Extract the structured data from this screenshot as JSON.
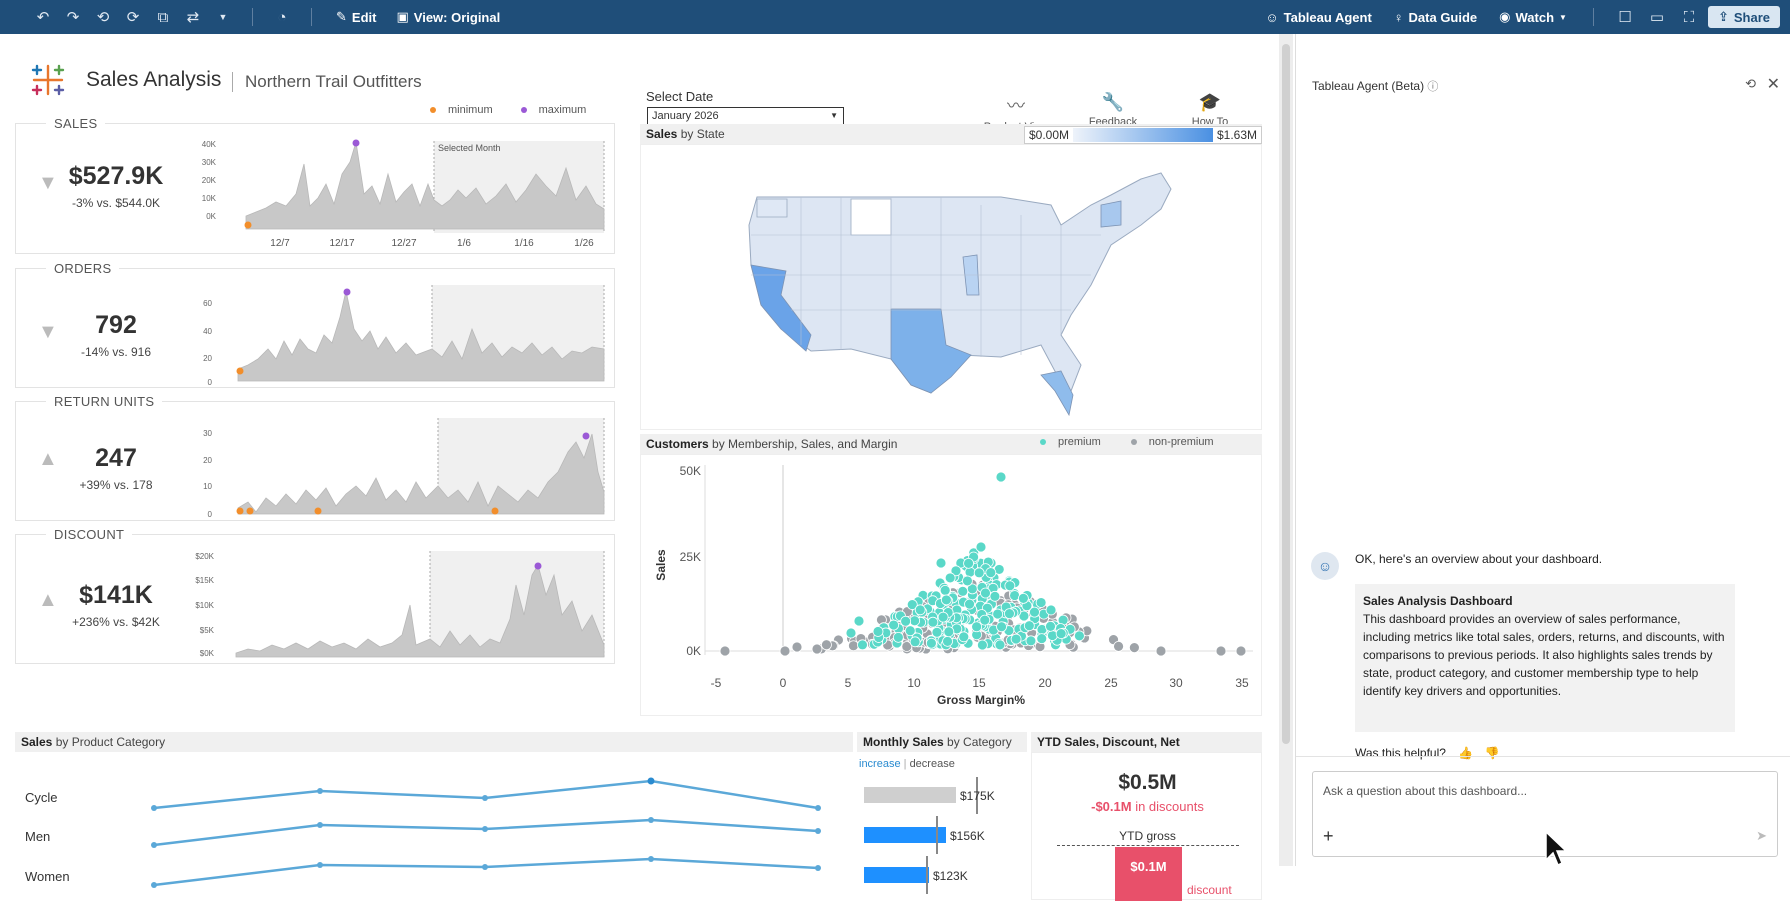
{
  "toolbar": {
    "edit_label": "Edit",
    "view_label": "View: Original",
    "agent_label": "Tableau Agent",
    "guide_label": "Data Guide",
    "watch_label": "Watch",
    "share_label": "Share"
  },
  "header": {
    "title": "Sales Analysis",
    "subtitle": "Northern Trail Outfitters",
    "legend_min": "minimum",
    "legend_max": "maximum"
  },
  "kpis": [
    {
      "label": "SALES",
      "value": "$527.9K",
      "pct": "-3%",
      "vs": " vs. $544.0K",
      "trend": "down",
      "yticks": [
        "40K",
        "30K",
        "20K",
        "10K",
        "0K"
      ],
      "xticks": [
        "12/7",
        "12/17",
        "12/27",
        "1/6",
        "1/16",
        "1/26"
      ],
      "selected_label": "Selected Month"
    },
    {
      "label": "ORDERS",
      "value": "792",
      "pct": "-14%",
      "vs": " vs. 916",
      "trend": "down",
      "yticks": [
        "60",
        "40",
        "20",
        "0"
      ]
    },
    {
      "label": "RETURN UNITS",
      "value": "247",
      "pct": "+39%",
      "vs": " vs. 178",
      "trend": "up",
      "yticks": [
        "30",
        "20",
        "10",
        "0"
      ]
    },
    {
      "label": "DISCOUNT",
      "value": "$141K",
      "pct": "+236%",
      "vs": " vs. $42K",
      "trend": "up",
      "yticks": [
        "$20K",
        "$15K",
        "$10K",
        "$5K",
        "$0K"
      ]
    }
  ],
  "select_date": {
    "label": "Select Date",
    "value": "January 2026"
  },
  "nav": {
    "product_view": "Product View",
    "feedback": "Feedback",
    "how_to": "How To"
  },
  "map": {
    "title_bold": "Sales",
    "title_rest": " by State",
    "legend_min": "$0.00M",
    "legend_max": "$1.63M"
  },
  "scatter": {
    "title_bold": "Customers",
    "title_rest": " by Membership, Sales, and Margin",
    "legend_premium": "premium",
    "legend_non": "non-premium",
    "ylabel": "Sales",
    "xlabel": "Gross Margin%",
    "yticks": [
      "50K",
      "25K",
      "0K"
    ],
    "xticks": [
      "-5",
      "0",
      "5",
      "10",
      "15",
      "20",
      "25",
      "30",
      "35"
    ]
  },
  "category": {
    "title_bold": "Sales",
    "title_rest": " by Product Category",
    "rows": [
      "Cycle",
      "Men",
      "Women"
    ]
  },
  "monthly": {
    "title_bold": "Monthly Sales",
    "title_rest": " by Category",
    "increase": "increase",
    "decrease": "decrease",
    "values": [
      "$175K",
      "$156K",
      "$123K"
    ]
  },
  "ytd": {
    "title": "YTD Sales, Discount, Net",
    "net": "$0.5M",
    "disc_value": "-$0.1M",
    "disc_suffix": " in discounts",
    "gross_label": "YTD gross",
    "bar_value": "$0.1M",
    "discount_label": "discount"
  },
  "panel": {
    "title": "Tableau Agent (Beta)",
    "bot_message": "OK, here's an overview about your dashboard.",
    "summary_title": "Sales Analysis Dashboard",
    "summary_text": "This dashboard provides an overview of sales performance, including metrics like total sales, orders, returns, and discounts, with comparisons to previous periods. It also highlights sales trends by state, product category, and customer membership type to help identify key drivers and opportunities.",
    "helpful": "Was this helpful?",
    "ask_placeholder": "Ask a question about this dashboard..."
  },
  "colors": {
    "accent_blue": "#1f4e79",
    "premium": "#5ad8c8",
    "non_premium": "#9ea3a8",
    "min_dot": "#f28e2b",
    "max_dot": "#9b59d6",
    "discount_red": "#e8506a"
  }
}
